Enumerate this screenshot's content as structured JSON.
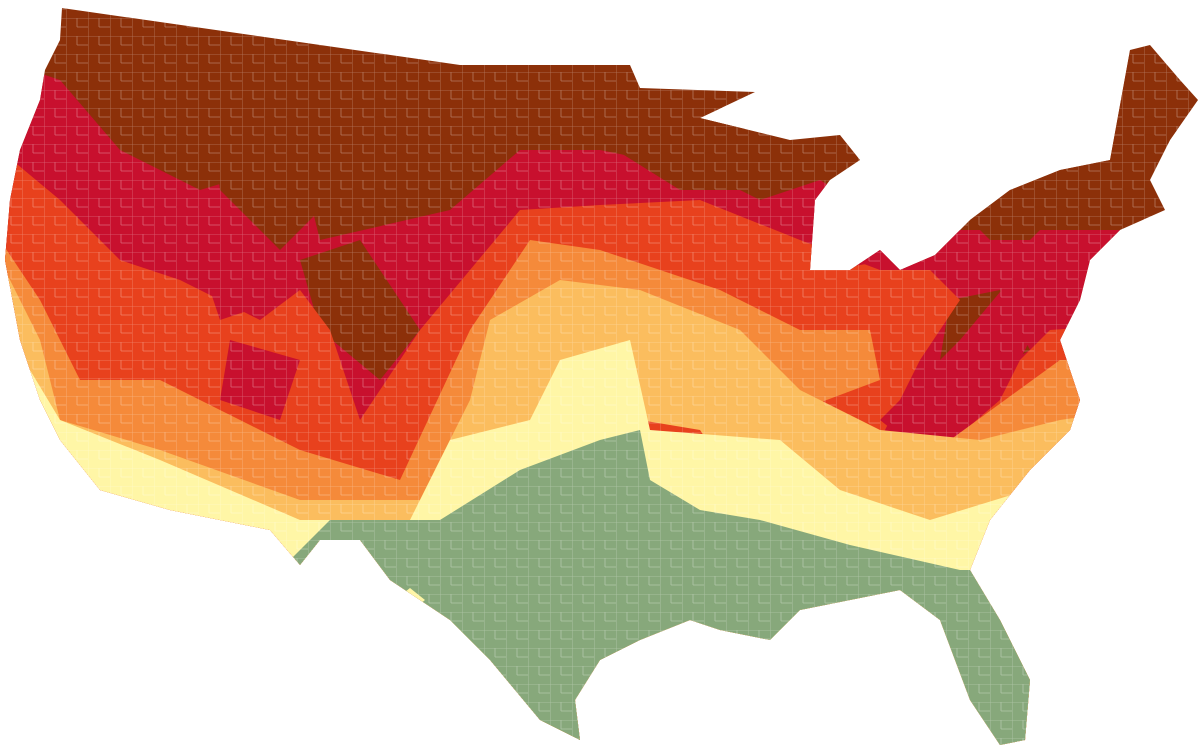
{
  "map": {
    "colors": [
      "#8c3009",
      "#c8102e",
      "#e8411d",
      "#f58a3a",
      "#fbbd5e",
      "#fff6a6",
      "#87a87b"
    ]
  }
}
